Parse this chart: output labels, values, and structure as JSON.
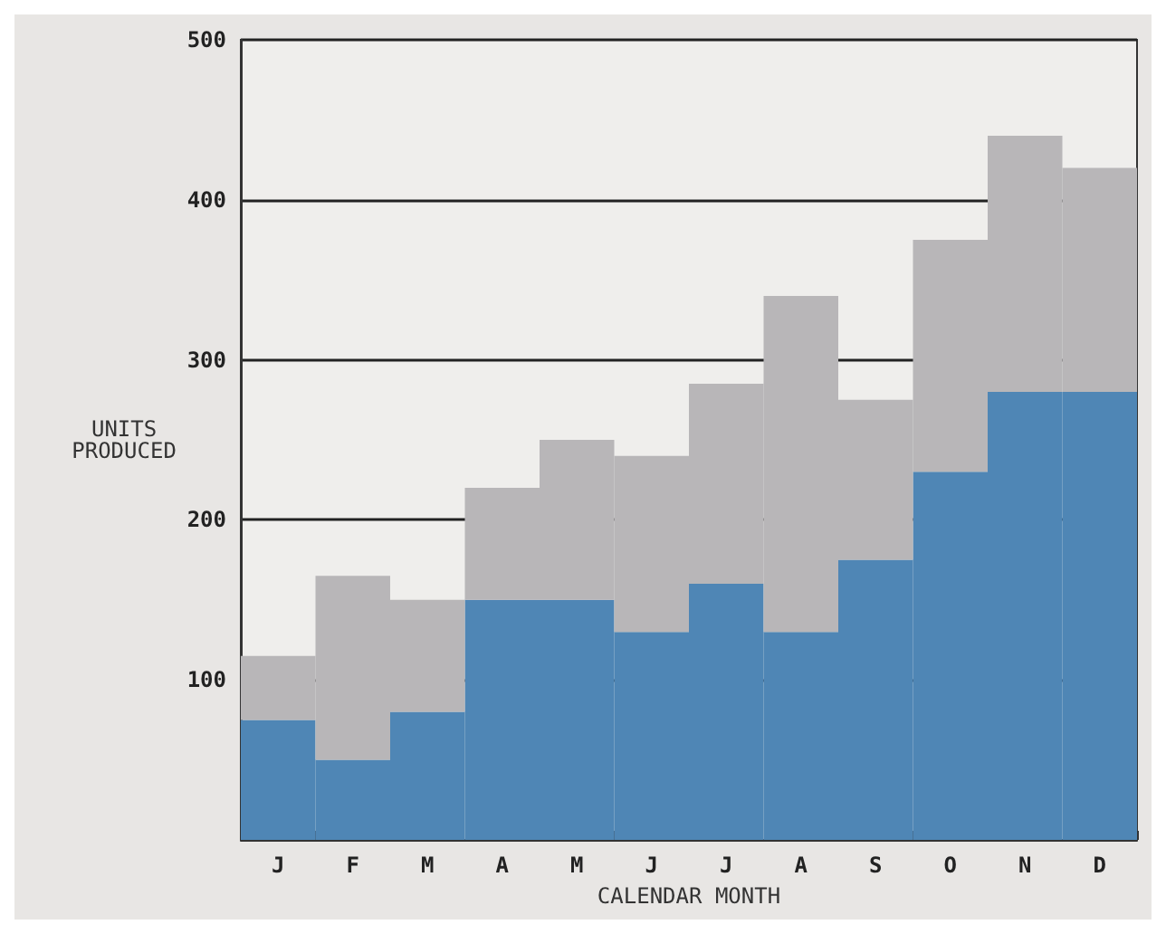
{
  "chart_data": {
    "type": "bar",
    "stacked": true,
    "xlabel": "CALENDAR MONTH",
    "ylabel": "UNITS\nPRODUCED",
    "categories": [
      "J",
      "F",
      "M",
      "A",
      "M",
      "J",
      "J",
      "A",
      "S",
      "O",
      "N",
      "D"
    ],
    "series": [
      {
        "color": "#4f86b5",
        "values": [
          75,
          50,
          80,
          150,
          150,
          130,
          160,
          130,
          175,
          230,
          280,
          280
        ]
      },
      {
        "color": "#b8b6b8",
        "values": [
          40,
          115,
          70,
          70,
          100,
          110,
          125,
          210,
          100,
          145,
          160,
          140
        ]
      }
    ],
    "ylim": [
      0,
      500
    ],
    "yticks": [
      100,
      200,
      300,
      400,
      500
    ],
    "grid": "y"
  }
}
